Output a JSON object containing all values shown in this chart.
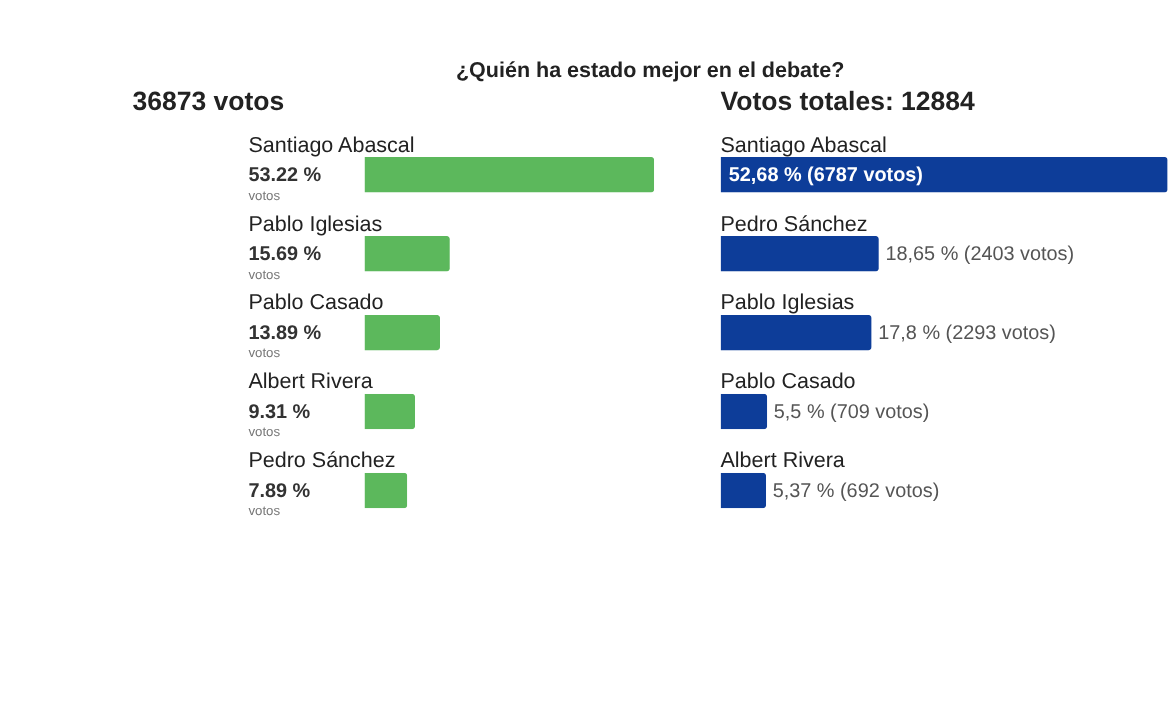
{
  "chart_data": [
    {
      "type": "bar",
      "orientation": "horizontal",
      "title": "¿Quién ha estado mejor en el debate?",
      "subtitle": "36873 votos",
      "categories": [
        "Santiago Abascal",
        "Pablo Iglesias",
        "Pablo Casado",
        "Albert Rivera",
        "Pedro Sánchez"
      ],
      "values": [
        53.22,
        15.69,
        13.89,
        9.31,
        7.89
      ],
      "value_labels": [
        "53.22 %",
        "15.69 %",
        "13.89 %",
        "9.31 %",
        "7.89 %"
      ],
      "color": "#5cb85c",
      "annotations": [
        "votos",
        "votos",
        "votos",
        "votos",
        "votos"
      ]
    },
    {
      "type": "bar",
      "orientation": "horizontal",
      "subtitle": "Votos totales: 12884",
      "categories": [
        "Santiago Abascal",
        "Pedro Sánchez",
        "Pablo Iglesias",
        "Pablo Casado",
        "Albert Rivera"
      ],
      "values": [
        52.68,
        18.65,
        17.8,
        5.5,
        5.37
      ],
      "value_labels": [
        "52,68 % (6787 votos)",
        "18,65 % (2403 votos)",
        "17,8 % (2293 votos)",
        "5,5 % (709 votos)",
        "5,37 % (692 votos)"
      ],
      "color": "#0d3d99"
    }
  ]
}
